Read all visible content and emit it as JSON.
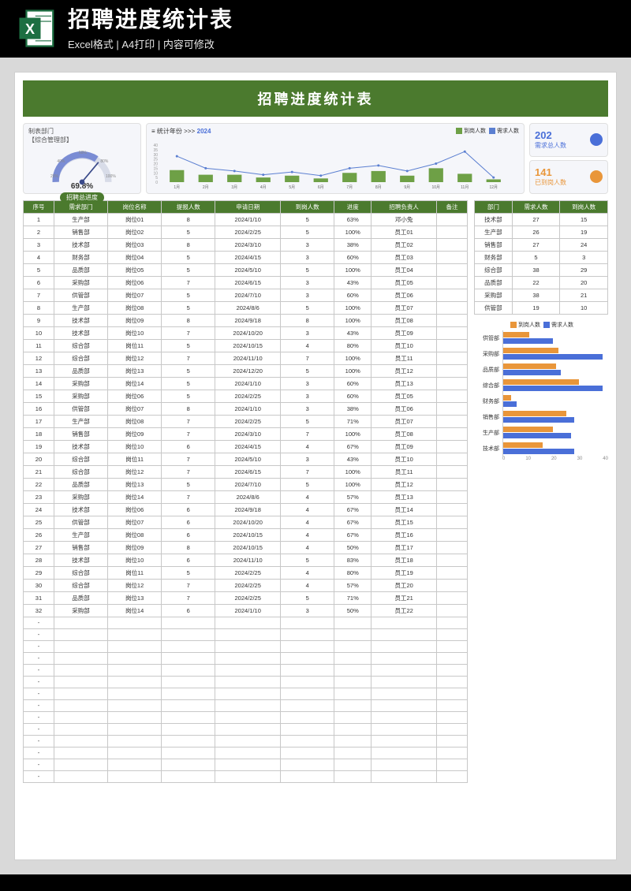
{
  "banner": {
    "title": "招聘进度统计表",
    "subtitle": "Excel格式 | A4打印 | 内容可修改"
  },
  "colors": {
    "primary_green": "#4b7a2e",
    "accent_blue": "#4a6fd8",
    "accent_orange": "#e9963a",
    "bar_green": "#6ea046",
    "line_blue": "#5b7fd1",
    "panel_bg": "#f5f6fa",
    "grid": "#c8c8c8"
  },
  "sheet_title": "招聘进度统计表",
  "gauge": {
    "dept_label1": "制表部门",
    "dept_label2": "【综合管理部】",
    "ticks": [
      "20%",
      "40%",
      "60%",
      "80%",
      "100%"
    ],
    "value": "69.8%",
    "label": "招聘总进度"
  },
  "monthly": {
    "title_prefix": "≡ 统计年份 >>>",
    "year": "2024",
    "legend1": "到岗人数",
    "legend2": "需求人数",
    "y_max": 40,
    "months": [
      "1月",
      "2月",
      "3月",
      "4月",
      "5月",
      "6月",
      "7月",
      "8月",
      "9月",
      "10月",
      "11月",
      "12月"
    ],
    "arrivals": [
      13,
      8,
      8,
      5,
      7,
      4,
      10,
      12,
      7,
      15,
      9,
      3
    ],
    "demand": [
      28,
      15,
      12,
      8,
      11,
      7,
      15,
      18,
      12,
      20,
      33,
      5
    ]
  },
  "stats": {
    "total_demand_val": "202",
    "total_demand_lab": "需求总人数",
    "arrived_val": "141",
    "arrived_lab": "已到岗人数"
  },
  "main_table": {
    "headers": [
      "序号",
      "需求部门",
      "岗位名称",
      "提报人数",
      "申请日期",
      "到岗人数",
      "进度",
      "招聘负责人",
      "备注"
    ],
    "rows": [
      [
        "1",
        "生产部",
        "岗位01",
        "8",
        "2024/1/10",
        "5",
        "63%",
        "邓小兔",
        ""
      ],
      [
        "2",
        "销售部",
        "岗位02",
        "5",
        "2024/2/25",
        "5",
        "100%",
        "员工01",
        ""
      ],
      [
        "3",
        "技术部",
        "岗位03",
        "8",
        "2024/3/10",
        "3",
        "38%",
        "员工02",
        ""
      ],
      [
        "4",
        "财务部",
        "岗位04",
        "5",
        "2024/4/15",
        "3",
        "60%",
        "员工03",
        ""
      ],
      [
        "5",
        "品质部",
        "岗位05",
        "5",
        "2024/5/10",
        "5",
        "100%",
        "员工04",
        ""
      ],
      [
        "6",
        "采购部",
        "岗位06",
        "7",
        "2024/6/15",
        "3",
        "43%",
        "员工05",
        ""
      ],
      [
        "7",
        "供管部",
        "岗位07",
        "5",
        "2024/7/10",
        "3",
        "60%",
        "员工06",
        ""
      ],
      [
        "8",
        "生产部",
        "岗位08",
        "5",
        "2024/8/6",
        "5",
        "100%",
        "员工07",
        ""
      ],
      [
        "9",
        "技术部",
        "岗位09",
        "8",
        "2024/9/18",
        "8",
        "100%",
        "员工08",
        ""
      ],
      [
        "10",
        "技术部",
        "岗位10",
        "7",
        "2024/10/20",
        "3",
        "43%",
        "员工09",
        ""
      ],
      [
        "11",
        "综合部",
        "岗位11",
        "5",
        "2024/10/15",
        "4",
        "80%",
        "员工10",
        ""
      ],
      [
        "12",
        "综合部",
        "岗位12",
        "7",
        "2024/11/10",
        "7",
        "100%",
        "员工11",
        ""
      ],
      [
        "13",
        "品质部",
        "岗位13",
        "5",
        "2024/12/20",
        "5",
        "100%",
        "员工12",
        ""
      ],
      [
        "14",
        "采购部",
        "岗位14",
        "5",
        "2024/1/10",
        "3",
        "60%",
        "员工13",
        ""
      ],
      [
        "15",
        "采购部",
        "岗位06",
        "5",
        "2024/2/25",
        "3",
        "60%",
        "员工05",
        ""
      ],
      [
        "16",
        "供管部",
        "岗位07",
        "8",
        "2024/1/10",
        "3",
        "38%",
        "员工06",
        ""
      ],
      [
        "17",
        "生产部",
        "岗位08",
        "7",
        "2024/2/25",
        "5",
        "71%",
        "员工07",
        ""
      ],
      [
        "18",
        "销售部",
        "岗位09",
        "7",
        "2024/3/10",
        "7",
        "100%",
        "员工08",
        ""
      ],
      [
        "19",
        "技术部",
        "岗位10",
        "6",
        "2024/4/15",
        "4",
        "67%",
        "员工09",
        ""
      ],
      [
        "20",
        "综合部",
        "岗位11",
        "7",
        "2024/5/10",
        "3",
        "43%",
        "员工10",
        ""
      ],
      [
        "21",
        "综合部",
        "岗位12",
        "7",
        "2024/6/15",
        "7",
        "100%",
        "员工11",
        ""
      ],
      [
        "22",
        "品质部",
        "岗位13",
        "5",
        "2024/7/10",
        "5",
        "100%",
        "员工12",
        ""
      ],
      [
        "23",
        "采购部",
        "岗位14",
        "7",
        "2024/8/6",
        "4",
        "57%",
        "员工13",
        ""
      ],
      [
        "24",
        "技术部",
        "岗位06",
        "6",
        "2024/9/18",
        "4",
        "67%",
        "员工14",
        ""
      ],
      [
        "25",
        "供管部",
        "岗位07",
        "6",
        "2024/10/20",
        "4",
        "67%",
        "员工15",
        ""
      ],
      [
        "26",
        "生产部",
        "岗位08",
        "6",
        "2024/10/15",
        "4",
        "67%",
        "员工16",
        ""
      ],
      [
        "27",
        "销售部",
        "岗位09",
        "8",
        "2024/10/15",
        "4",
        "50%",
        "员工17",
        ""
      ],
      [
        "28",
        "技术部",
        "岗位10",
        "6",
        "2024/11/10",
        "5",
        "83%",
        "员工18",
        ""
      ],
      [
        "29",
        "综合部",
        "岗位11",
        "5",
        "2024/2/25",
        "4",
        "80%",
        "员工19",
        ""
      ],
      [
        "30",
        "综合部",
        "岗位12",
        "7",
        "2024/2/25",
        "4",
        "57%",
        "员工20",
        ""
      ],
      [
        "31",
        "品质部",
        "岗位13",
        "7",
        "2024/2/25",
        "5",
        "71%",
        "员工21",
        ""
      ],
      [
        "32",
        "采购部",
        "岗位14",
        "6",
        "2024/1/10",
        "3",
        "50%",
        "员工22",
        ""
      ]
    ],
    "empty_rows": 14
  },
  "side_table": {
    "headers": [
      "部门",
      "需求人数",
      "到岗人数"
    ],
    "rows": [
      [
        "技术部",
        "27",
        "15"
      ],
      [
        "生产部",
        "26",
        "19"
      ],
      [
        "销售部",
        "27",
        "24"
      ],
      [
        "财务部",
        "5",
        "3"
      ],
      [
        "综合部",
        "38",
        "29"
      ],
      [
        "品质部",
        "22",
        "20"
      ],
      [
        "采购部",
        "38",
        "21"
      ],
      [
        "供管部",
        "19",
        "10"
      ]
    ]
  },
  "side_chart": {
    "legend1": "到岗人数",
    "legend2": "需求人数",
    "max_x": 40,
    "ticks": [
      "0",
      "10",
      "20",
      "30",
      "40"
    ],
    "rows": [
      {
        "label": "供管部",
        "arrived": 10,
        "demand": 19
      },
      {
        "label": "采购部",
        "arrived": 21,
        "demand": 38
      },
      {
        "label": "品质部",
        "arrived": 20,
        "demand": 22
      },
      {
        "label": "综合部",
        "arrived": 29,
        "demand": 38
      },
      {
        "label": "财务部",
        "arrived": 3,
        "demand": 5
      },
      {
        "label": "销售部",
        "arrived": 24,
        "demand": 27
      },
      {
        "label": "生产部",
        "arrived": 19,
        "demand": 26
      },
      {
        "label": "技术部",
        "arrived": 15,
        "demand": 27
      }
    ]
  }
}
